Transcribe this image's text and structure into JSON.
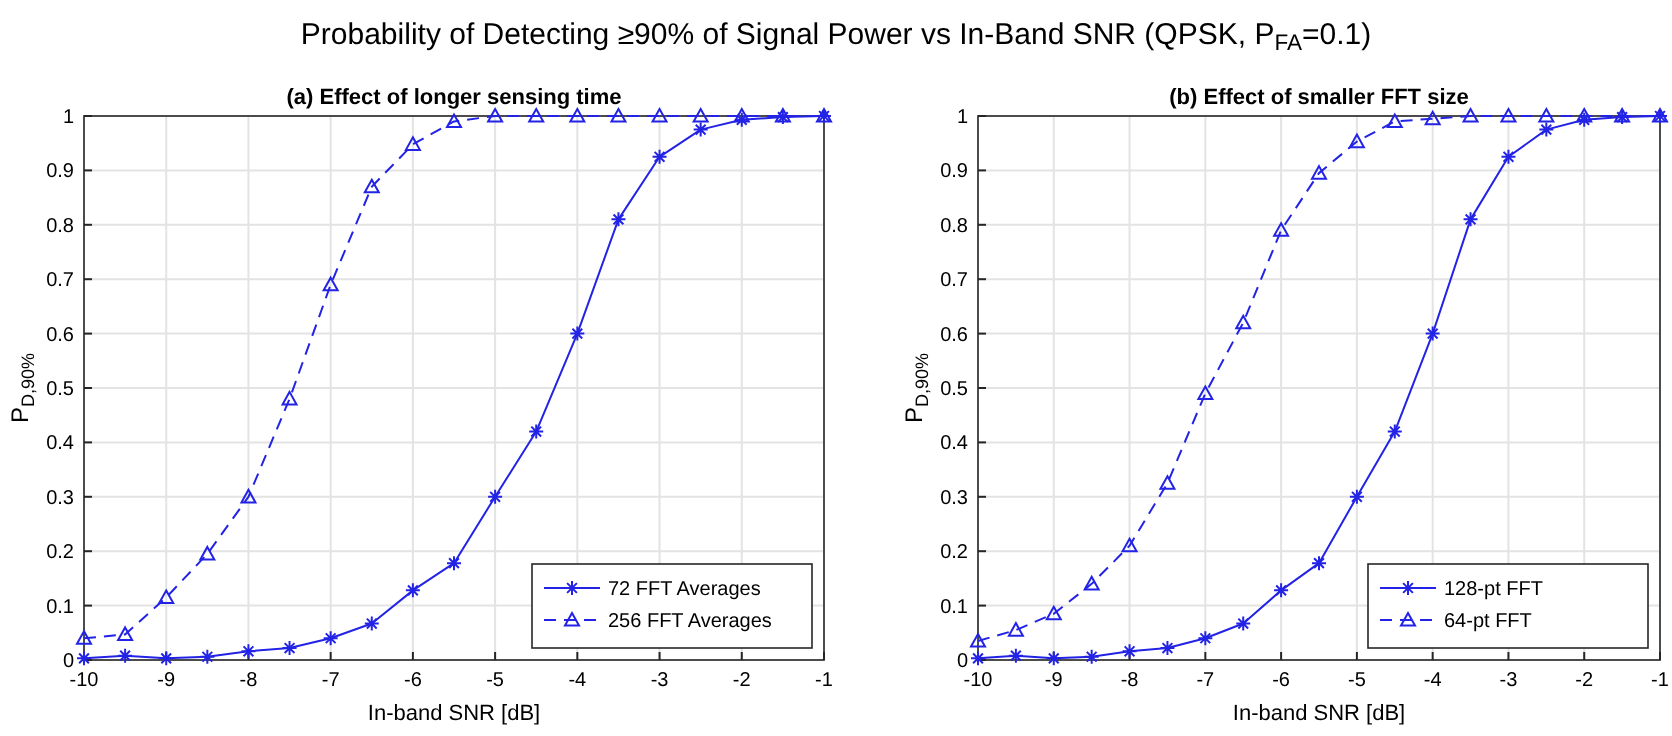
{
  "chart_data": [
    {
      "type": "line",
      "title": "Probability of Detecting ≥90% of Signal Power vs In-Band SNR (QPSK, P$_{FA}$=0.1)",
      "subtitle": "(a) Effect of longer sensing time",
      "xlabel": "In-band SNR [dB]",
      "ylabel": "P$_{D,90%}$",
      "xlim": [
        -10,
        -1
      ],
      "xticks": [
        -10,
        -9,
        -8,
        -7,
        -6,
        -5,
        -4,
        -3,
        -2,
        -1
      ],
      "ylim": [
        0,
        1
      ],
      "yticks": [
        0,
        0.1,
        0.2,
        0.3,
        0.4,
        0.5,
        0.6,
        0.7,
        0.8,
        0.9,
        1
      ],
      "grid": true,
      "legend": "bottom right",
      "x": [
        -10,
        -9.5,
        -9,
        -8.5,
        -8,
        -7.5,
        -7,
        -6.5,
        -6,
        -5.5,
        -5,
        -4.5,
        -4,
        -3.5,
        -3,
        -2.5,
        -2,
        -1.5,
        -1
      ],
      "series": [
        {
          "name": "72 FFT Averages",
          "color": "#2323e6",
          "marker": "cross",
          "line_style": "solid",
          "values": [
            0.003,
            0.008,
            0.003,
            0.006,
            0.016,
            0.022,
            0.04,
            0.067,
            0.128,
            0.178,
            0.3,
            0.42,
            0.6,
            0.81,
            0.925,
            0.975,
            0.993,
            0.998,
            1
          ]
        },
        {
          "name": "256 FFT Averages",
          "color": "#2323e6",
          "marker": "triangle",
          "line_style": "dashed",
          "values": [
            0.04,
            0.047,
            0.115,
            0.195,
            0.3,
            0.48,
            0.69,
            0.87,
            0.948,
            0.99,
            1,
            1,
            1,
            1,
            1,
            1,
            1,
            1,
            1
          ]
        }
      ]
    },
    {
      "type": "line",
      "subtitle": "(b) Effect of smaller FFT size",
      "xlabel": "In-band SNR [dB]",
      "ylabel": "P$_{D,90%}$",
      "xlim": [
        -10,
        -1
      ],
      "xticks": [
        -10,
        -9,
        -8,
        -7,
        -6,
        -5,
        -4,
        -3,
        -2,
        -1
      ],
      "ylim": [
        0,
        1
      ],
      "yticks": [
        0,
        0.1,
        0.2,
        0.3,
        0.4,
        0.5,
        0.6,
        0.7,
        0.8,
        0.9,
        1
      ],
      "grid": true,
      "legend": "bottom right",
      "x": [
        -10,
        -9.5,
        -9,
        -8.5,
        -8,
        -7.5,
        -7,
        -6.5,
        -6,
        -5.5,
        -5,
        -4.5,
        -4,
        -3.5,
        -3,
        -2.5,
        -2,
        -1.5,
        -1
      ],
      "series": [
        {
          "name": "128-pt FFT",
          "color": "#2323e6",
          "marker": "cross",
          "line_style": "solid",
          "values": [
            0.003,
            0.008,
            0.003,
            0.006,
            0.016,
            0.022,
            0.04,
            0.067,
            0.128,
            0.178,
            0.3,
            0.42,
            0.6,
            0.81,
            0.925,
            0.975,
            0.993,
            0.998,
            1
          ]
        },
        {
          "name": "64-pt FFT",
          "color": "#2323e6",
          "marker": "triangle",
          "line_style": "dashed",
          "values": [
            0.035,
            0.055,
            0.085,
            0.14,
            0.21,
            0.325,
            0.49,
            0.62,
            0.79,
            0.895,
            0.953,
            0.99,
            0.995,
            1,
            1,
            1,
            1,
            1,
            1
          ]
        }
      ]
    }
  ]
}
